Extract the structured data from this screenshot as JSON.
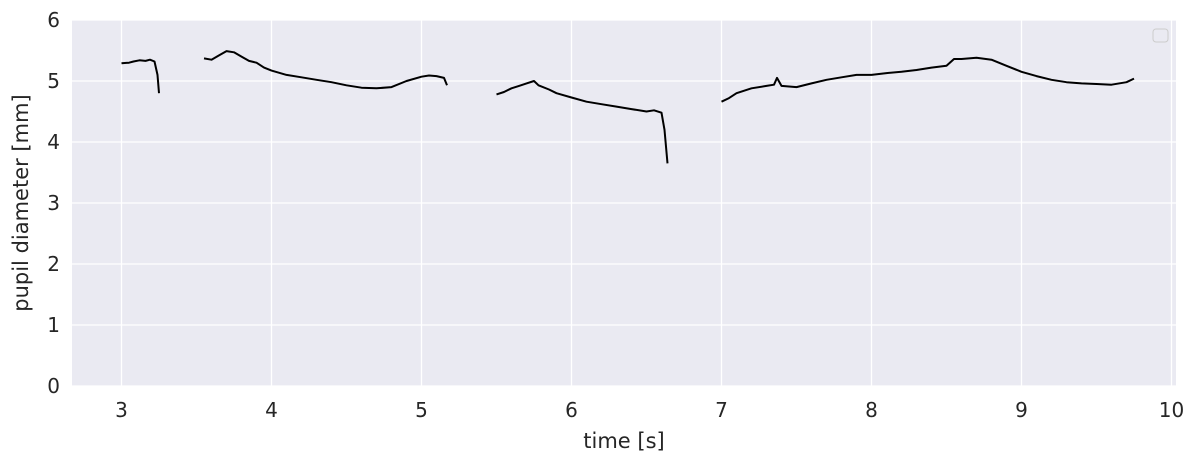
{
  "chart_data": {
    "type": "line",
    "title": "",
    "xlabel": "time [s]",
    "ylabel": "pupil diameter [mm]",
    "xlim": [
      2.67,
      10.03
    ],
    "ylim": [
      0,
      6
    ],
    "x_ticks": [
      3,
      4,
      5,
      6,
      7,
      8,
      9,
      10
    ],
    "y_ticks": [
      0,
      1,
      2,
      3,
      4,
      5,
      6
    ],
    "grid": true,
    "legend": "top-right (empty)",
    "colors": {
      "background": "#eaeaf2",
      "grid": "#ffffff",
      "line": "#000000",
      "text": "#262626"
    },
    "series": [
      {
        "segments": [
          [
            [
              3.0,
              5.29
            ],
            [
              3.05,
              5.3
            ],
            [
              3.08,
              5.32
            ],
            [
              3.12,
              5.34
            ],
            [
              3.16,
              5.33
            ],
            [
              3.19,
              5.35
            ],
            [
              3.22,
              5.32
            ],
            [
              3.24,
              5.1
            ],
            [
              3.25,
              4.8
            ]
          ],
          [
            [
              3.55,
              5.37
            ],
            [
              3.6,
              5.35
            ],
            [
              3.65,
              5.42
            ],
            [
              3.7,
              5.49
            ],
            [
              3.75,
              5.47
            ],
            [
              3.8,
              5.4
            ],
            [
              3.85,
              5.33
            ],
            [
              3.9,
              5.3
            ],
            [
              3.95,
              5.22
            ],
            [
              4.0,
              5.17
            ],
            [
              4.1,
              5.1
            ],
            [
              4.2,
              5.06
            ],
            [
              4.3,
              5.02
            ],
            [
              4.4,
              4.98
            ],
            [
              4.5,
              4.93
            ],
            [
              4.6,
              4.89
            ],
            [
              4.7,
              4.88
            ],
            [
              4.8,
              4.9
            ],
            [
              4.9,
              5.0
            ],
            [
              5.0,
              5.07
            ],
            [
              5.05,
              5.09
            ],
            [
              5.1,
              5.08
            ],
            [
              5.15,
              5.05
            ],
            [
              5.17,
              4.93
            ]
          ],
          [
            [
              5.5,
              4.78
            ],
            [
              5.55,
              4.82
            ],
            [
              5.6,
              4.88
            ],
            [
              5.65,
              4.92
            ],
            [
              5.7,
              4.96
            ],
            [
              5.75,
              5.0
            ],
            [
              5.78,
              4.93
            ],
            [
              5.85,
              4.86
            ],
            [
              5.9,
              4.8
            ],
            [
              6.0,
              4.73
            ],
            [
              6.1,
              4.66
            ],
            [
              6.2,
              4.62
            ],
            [
              6.3,
              4.58
            ],
            [
              6.4,
              4.54
            ],
            [
              6.5,
              4.5
            ],
            [
              6.55,
              4.52
            ],
            [
              6.6,
              4.48
            ],
            [
              6.62,
              4.2
            ],
            [
              6.64,
              3.65
            ]
          ],
          [
            [
              7.0,
              4.66
            ],
            [
              7.05,
              4.72
            ],
            [
              7.1,
              4.8
            ],
            [
              7.2,
              4.88
            ],
            [
              7.3,
              4.92
            ],
            [
              7.35,
              4.94
            ],
            [
              7.37,
              5.05
            ],
            [
              7.4,
              4.92
            ],
            [
              7.5,
              4.9
            ],
            [
              7.6,
              4.96
            ],
            [
              7.7,
              5.02
            ],
            [
              7.8,
              5.06
            ],
            [
              7.9,
              5.1
            ],
            [
              8.0,
              5.1
            ],
            [
              8.1,
              5.13
            ],
            [
              8.2,
              5.15
            ],
            [
              8.3,
              5.18
            ],
            [
              8.4,
              5.22
            ],
            [
              8.5,
              5.25
            ],
            [
              8.55,
              5.36
            ],
            [
              8.6,
              5.36
            ],
            [
              8.7,
              5.38
            ],
            [
              8.8,
              5.35
            ],
            [
              8.9,
              5.25
            ],
            [
              9.0,
              5.15
            ],
            [
              9.1,
              5.08
            ],
            [
              9.2,
              5.02
            ],
            [
              9.3,
              4.98
            ],
            [
              9.4,
              4.96
            ],
            [
              9.5,
              4.95
            ],
            [
              9.6,
              4.94
            ],
            [
              9.7,
              4.98
            ],
            [
              9.75,
              5.04
            ]
          ]
        ]
      }
    ]
  }
}
